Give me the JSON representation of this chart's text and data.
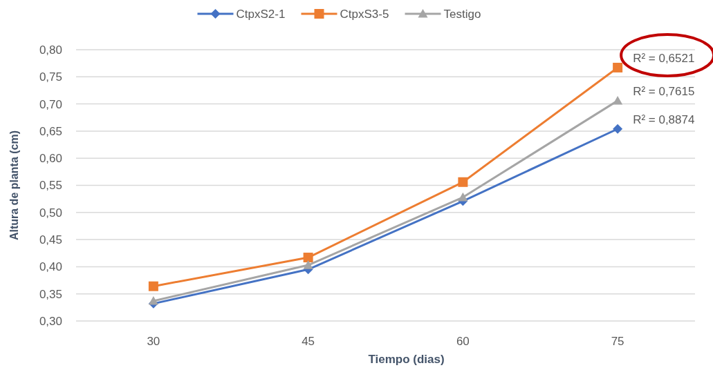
{
  "chart_data": {
    "type": "line",
    "xlabel": "Tiempo (dias)",
    "ylabel": "Altura de planta (cm)",
    "categories": [
      "30",
      "45",
      "60",
      "75"
    ],
    "series": [
      {
        "name": "CtpxS2-1",
        "color": "#4472c4",
        "marker": "diamond",
        "values": [
          0.332,
          0.395,
          0.521,
          0.654
        ]
      },
      {
        "name": "CtpxS3-5",
        "color": "#ed7d31",
        "marker": "square",
        "values": [
          0.364,
          0.417,
          0.556,
          0.767
        ]
      },
      {
        "name": "Testigo",
        "color": "#a5a5a5",
        "marker": "triangle",
        "values": [
          0.337,
          0.403,
          0.528,
          0.706
        ]
      }
    ],
    "ylim": [
      0.3,
      0.8
    ],
    "yticks": [
      {
        "value": 0.3,
        "label": "0,30"
      },
      {
        "value": 0.35,
        "label": "0,35"
      },
      {
        "value": 0.4,
        "label": "0,40"
      },
      {
        "value": 0.45,
        "label": "0,45"
      },
      {
        "value": 0.5,
        "label": "0,50"
      },
      {
        "value": 0.55,
        "label": "0,55"
      },
      {
        "value": 0.6,
        "label": "0,60"
      },
      {
        "value": 0.65,
        "label": "0,65"
      },
      {
        "value": 0.7,
        "label": "0,70"
      },
      {
        "value": 0.75,
        "label": "0,75"
      },
      {
        "value": 0.8,
        "label": "0,80"
      }
    ],
    "grid": "y",
    "legend": "top",
    "line_style": "solid",
    "annotations": [
      {
        "text": "R² = 0,6521",
        "x": "75",
        "y": 0.767
      },
      {
        "text": "R² = 0,7615",
        "x": "75",
        "y": 0.706
      },
      {
        "text": "R² = 0,8874",
        "x": "75",
        "y": 0.654
      }
    ]
  }
}
